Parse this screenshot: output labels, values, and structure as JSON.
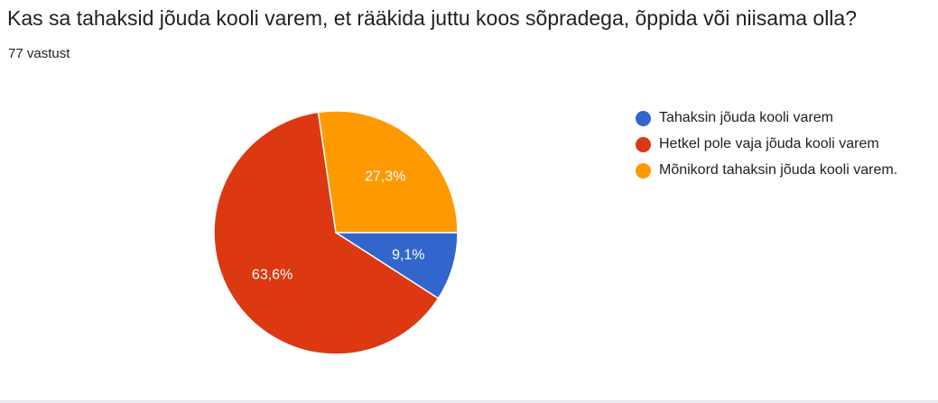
{
  "question": {
    "title": "Kas sa tahaksid jõuda kooli varem, et rääkida juttu koos sõpradega, õppida või niisama olla?",
    "response_count": "77 vastust"
  },
  "chart_data": {
    "type": "pie",
    "title": "",
    "slices": [
      {
        "label": "Tahaksin jõuda kooli varem",
        "value": 9.1,
        "display": "9,1%",
        "color": "#3366cc"
      },
      {
        "label": "Hetkel pole vaja jõuda kooli varem",
        "value": 63.6,
        "display": "63,6%",
        "color": "#dc3912"
      },
      {
        "label": "Mõnikord tahaksin jõuda kooli varem.",
        "value": 27.3,
        "display": "27,3%",
        "color": "#ff9900"
      }
    ],
    "legend_position": "right"
  }
}
